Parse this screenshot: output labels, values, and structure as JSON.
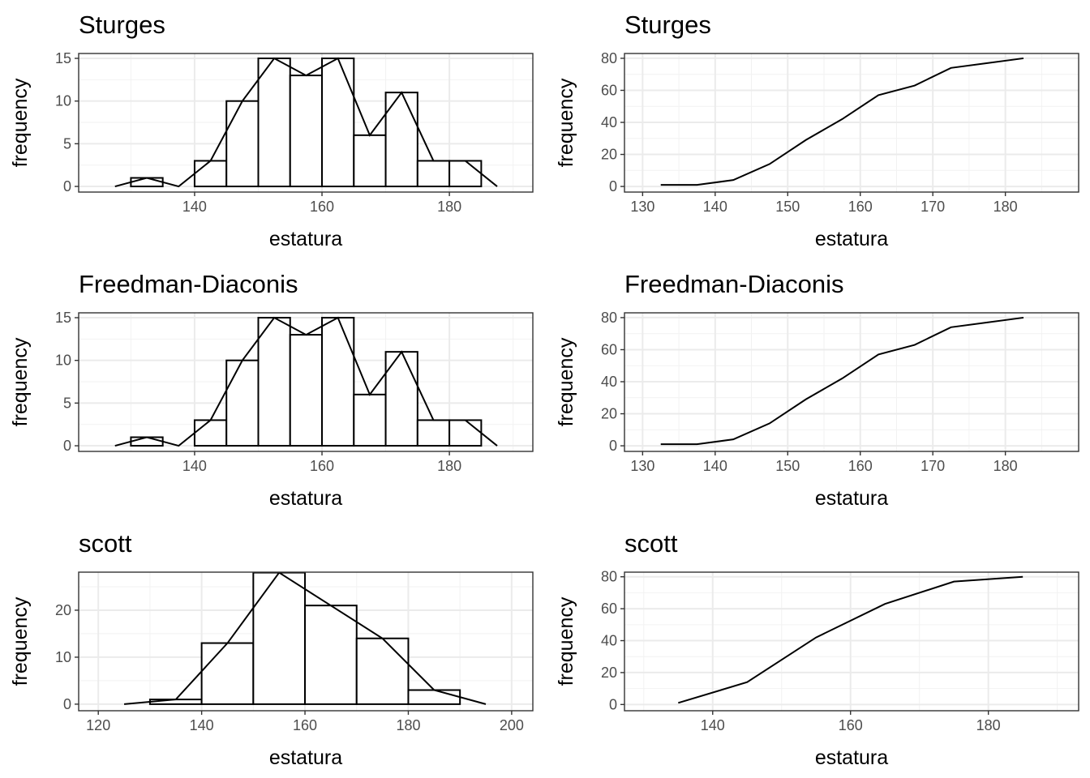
{
  "chart_data": [
    {
      "type": "bar",
      "title": "Sturges",
      "xlabel": "estatura",
      "ylabel": "frequency",
      "bins": [
        [
          130,
          135
        ],
        [
          135,
          140
        ],
        [
          140,
          145
        ],
        [
          145,
          150
        ],
        [
          150,
          155
        ],
        [
          155,
          160
        ],
        [
          160,
          165
        ],
        [
          165,
          170
        ],
        [
          170,
          175
        ],
        [
          175,
          180
        ],
        [
          180,
          185
        ]
      ],
      "values": [
        1,
        0,
        3,
        10,
        15,
        13,
        15,
        6,
        11,
        3,
        3
      ],
      "polygon": {
        "x": [
          127.5,
          132.5,
          137.5,
          142.5,
          147.5,
          152.5,
          157.5,
          162.5,
          167.5,
          172.5,
          177.5,
          182.5,
          187.5
        ],
        "y": [
          0,
          1,
          0,
          3,
          10,
          15,
          13,
          15,
          6,
          11,
          3,
          3,
          0
        ]
      },
      "xticks": [
        140,
        160,
        180
      ],
      "yticks": [
        0,
        5,
        10,
        15
      ],
      "xlim": [
        121.8,
        193.1
      ],
      "ylim": [
        -0.66,
        15.57
      ],
      "grid": true
    },
    {
      "type": "line",
      "title": "Sturges",
      "xlabel": "estatura",
      "ylabel": "frequency",
      "x": [
        132.5,
        137.5,
        142.5,
        147.5,
        152.5,
        157.5,
        162.5,
        167.5,
        172.5,
        177.5,
        182.5
      ],
      "y": [
        1,
        1,
        4,
        14,
        29,
        42,
        57,
        63,
        74,
        77,
        80
      ],
      "xticks": [
        130,
        140,
        150,
        160,
        170,
        180
      ],
      "yticks": [
        0,
        20,
        40,
        60,
        80
      ],
      "xlim": [
        127.5,
        190.1
      ],
      "ylim": [
        -3.5,
        83
      ],
      "grid": true
    },
    {
      "type": "bar",
      "title": "Freedman-Diaconis",
      "xlabel": "estatura",
      "ylabel": "frequency",
      "bins": [
        [
          130,
          135
        ],
        [
          135,
          140
        ],
        [
          140,
          145
        ],
        [
          145,
          150
        ],
        [
          150,
          155
        ],
        [
          155,
          160
        ],
        [
          160,
          165
        ],
        [
          165,
          170
        ],
        [
          170,
          175
        ],
        [
          175,
          180
        ],
        [
          180,
          185
        ]
      ],
      "values": [
        1,
        0,
        3,
        10,
        15,
        13,
        15,
        6,
        11,
        3,
        3
      ],
      "polygon": {
        "x": [
          127.5,
          132.5,
          137.5,
          142.5,
          147.5,
          152.5,
          157.5,
          162.5,
          167.5,
          172.5,
          177.5,
          182.5,
          187.5
        ],
        "y": [
          0,
          1,
          0,
          3,
          10,
          15,
          13,
          15,
          6,
          11,
          3,
          3,
          0
        ]
      },
      "xticks": [
        140,
        160,
        180
      ],
      "yticks": [
        0,
        5,
        10,
        15
      ],
      "xlim": [
        121.8,
        193.1
      ],
      "ylim": [
        -0.66,
        15.57
      ],
      "grid": true
    },
    {
      "type": "line",
      "title": "Freedman-Diaconis",
      "xlabel": "estatura",
      "ylabel": "frequency",
      "x": [
        132.5,
        137.5,
        142.5,
        147.5,
        152.5,
        157.5,
        162.5,
        167.5,
        172.5,
        177.5,
        182.5
      ],
      "y": [
        1,
        1,
        4,
        14,
        29,
        42,
        57,
        63,
        74,
        77,
        80
      ],
      "xticks": [
        130,
        140,
        150,
        160,
        170,
        180
      ],
      "yticks": [
        0,
        20,
        40,
        60,
        80
      ],
      "xlim": [
        127.5,
        190.1
      ],
      "ylim": [
        -3.5,
        83
      ],
      "grid": true
    },
    {
      "type": "bar",
      "title": "scott",
      "xlabel": "estatura",
      "ylabel": "frequency",
      "bins": [
        [
          130,
          140
        ],
        [
          140,
          150
        ],
        [
          150,
          160
        ],
        [
          160,
          170
        ],
        [
          170,
          180
        ],
        [
          180,
          190
        ]
      ],
      "values": [
        1,
        13,
        28,
        21,
        14,
        3
      ],
      "polygon": {
        "x": [
          125,
          135,
          145,
          155,
          165,
          175,
          185,
          195
        ],
        "y": [
          0,
          1,
          13,
          28,
          21,
          14,
          3,
          0
        ]
      },
      "xticks": [
        120,
        140,
        160,
        180,
        200
      ],
      "yticks": [
        0,
        10,
        20
      ],
      "xlim": [
        116.2,
        204.1
      ],
      "ylim": [
        -1.4,
        28.1
      ],
      "grid": true
    },
    {
      "type": "line",
      "title": "scott",
      "xlabel": "estatura",
      "ylabel": "frequency",
      "x": [
        135,
        145,
        155,
        165,
        175,
        185
      ],
      "y": [
        1,
        14,
        42,
        63,
        77,
        80
      ],
      "xticks": [
        140,
        160,
        180
      ],
      "yticks": [
        0,
        20,
        40,
        60,
        80
      ],
      "xlim": [
        127.2,
        193.1
      ],
      "ylim": [
        -3.9,
        82.9
      ],
      "grid": true
    }
  ]
}
